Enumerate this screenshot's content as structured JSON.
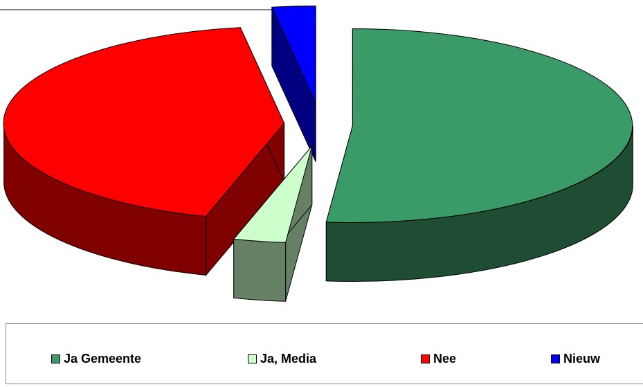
{
  "chart_data": {
    "type": "pie",
    "style": "3d-exploded",
    "categories": [
      "Ja Gemeente",
      "Ja, Media",
      "Nee",
      "Nieuw"
    ],
    "values": [
      51.5,
      3,
      43,
      2.5
    ],
    "legend_position": "bottom"
  },
  "colors": {
    "Ja Gemeente": "#3a9a68",
    "Ja, Media": "#ccffcc",
    "Nee": "#ff0000",
    "Nieuw": "#0000ff"
  },
  "side_colors": {
    "Ja Gemeente": "#1e4d33",
    "Ja, Media": "#668066",
    "Nee": "#800000",
    "Nieuw": "#000080"
  },
  "legend": {
    "items": [
      {
        "label": "Ja Gemeente"
      },
      {
        "label": "Ja, Media"
      },
      {
        "label": "Nee"
      },
      {
        "label": "Nieuw"
      }
    ]
  }
}
